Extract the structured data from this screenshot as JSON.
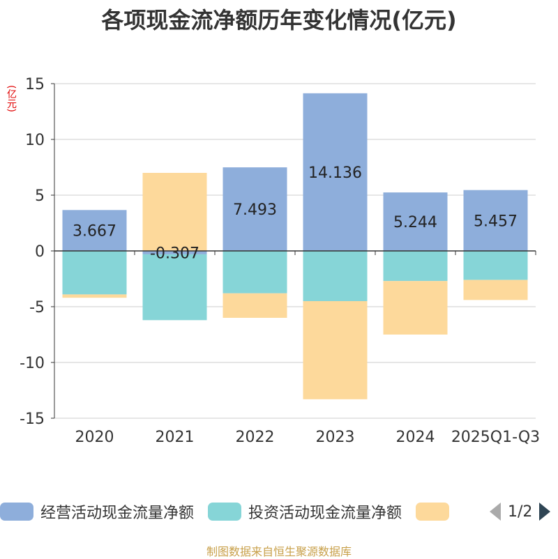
{
  "chart_data": {
    "type": "bar",
    "stacked": true,
    "title": "各项现金流净额历年变化情况(亿元)",
    "ylabel": "(亿元)",
    "xlabel": "",
    "ylim": [
      -15,
      15
    ],
    "yticks": [
      15,
      10,
      5,
      0,
      -5,
      -10,
      -15
    ],
    "grid": true,
    "legend_position": "bottom",
    "categories": [
      "2020",
      "2021",
      "2022",
      "2023",
      "2024",
      "2025Q1-Q3"
    ],
    "series": [
      {
        "name": "经营活动现金流量净额",
        "color": "#8eaedb",
        "values": [
          3.667,
          -0.307,
          7.493,
          14.136,
          5.244,
          5.457
        ],
        "labels": [
          "3.667",
          "-0.307",
          "7.493",
          "14.136",
          "5.244",
          "5.457"
        ]
      },
      {
        "name": "投资活动现金流量净额",
        "color": "#86d5d7",
        "values": [
          -3.9,
          -5.9,
          -3.8,
          -4.5,
          -2.7,
          -2.6
        ]
      },
      {
        "name": "",
        "color": "#fdd99b",
        "values": [
          -0.3,
          7.0,
          -2.2,
          -8.8,
          -4.8,
          -1.8
        ]
      }
    ]
  },
  "legend": {
    "page": "1/2",
    "prev_icon": "triangle-left-icon",
    "next_icon": "triangle-right-icon"
  },
  "source": "制图数据来自恒生聚源数据库"
}
